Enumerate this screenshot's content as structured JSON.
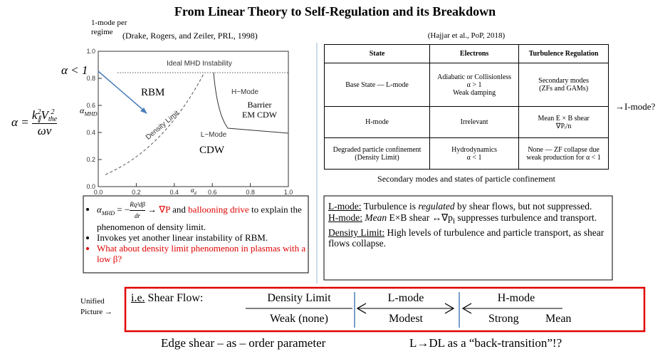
{
  "title": "From Linear Theory to Self-Regulation and its Breakdown",
  "left": {
    "regime_note": [
      "1-mode per",
      "regime"
    ],
    "citation": "(Drake, Rogers, and Zeiler, PRL, 1998)",
    "alpha_condition": "α < 1",
    "alpha_def": {
      "lhs": "α =",
      "k": "k",
      "k_sub": "∥",
      "k_sup": "2",
      "v": "V",
      "v_sub": "the",
      "v_sup": "2",
      "denominator": "ων"
    },
    "plot": {
      "ylabel_main": "α",
      "ylabel_sub": "MHD",
      "xlabel_main": "α",
      "xlabel_sub": "d",
      "xlim": [
        0,
        1
      ],
      "ylim": [
        0,
        1
      ],
      "xticks": [
        {
          "value": 0,
          "label": "0.0"
        },
        {
          "value": 0.2,
          "label": "0.2"
        },
        {
          "value": 0.4,
          "label": "0.4"
        },
        {
          "value": 0.6,
          "label": "0.6"
        },
        {
          "value": 0.8,
          "label": "0.8"
        },
        {
          "value": 1,
          "label": "1.0"
        }
      ],
      "yticks": [
        {
          "value": 0,
          "label": "0.0"
        },
        {
          "value": 0.2,
          "label": "0.2"
        },
        {
          "value": 0.4,
          "label": "0.4"
        },
        {
          "value": 0.6,
          "label": "0.6"
        },
        {
          "value": 0.8,
          "label": "0.8"
        },
        {
          "value": 1,
          "label": "1.0"
        }
      ],
      "ideal": "Ideal MHD Instability",
      "hmode": "H−Mode",
      "density_limit": "Density Limit",
      "lmode": "L−Mode",
      "rbm": "RBM",
      "barrier": [
        "Barrier",
        "EM CDW"
      ],
      "cdw": "CDW"
    },
    "bullets": {
      "b1": {
        "alpha": "α",
        "alpha_sub": "MHD",
        "eq": " = −",
        "num": "Rq²dβ",
        "den": "dr",
        "arrow": " → ",
        "gradp": "∇P",
        "and": " and ",
        "drive": "ballooning drive",
        "rest": "to explain the phenomenon of density limit."
      },
      "b2": "Invokes yet another linear instability of RBM.",
      "b3": "What about density limit phenomenon in plasmas with a low β?"
    }
  },
  "right": {
    "citation": "(Hajjar et al., PoP, 2018)",
    "table": {
      "header": [
        "State",
        "Electrons",
        "Turbulence Regulation"
      ],
      "rows": [
        [
          [
            "Base State — L-mode"
          ],
          [
            "Adiabatic or Collisionless",
            "α > 1",
            "Weak damping"
          ],
          [
            "Secondary modes",
            "(ZFs and GAMs)"
          ]
        ],
        [
          [
            "H-mode"
          ],
          [
            "Irrelevant"
          ],
          [
            "Mean E × B shear",
            "∇Pᵢ/n"
          ]
        ],
        [
          [
            "Degraded particle confinement",
            "(Density Limit)"
          ],
          [
            "Hydrodynamics",
            "α < 1"
          ],
          [
            "None — ZF collapse due",
            "weak production for α < 1"
          ]
        ]
      ]
    },
    "caption": "Secondary modes and states of particle confinement",
    "imode": "→I-mode?",
    "box": {
      "l_head": "L-mode:",
      "l_1": " Turbulence is ",
      "l_it": "regulated",
      "l_2": " by shear flows, but not suppressed.",
      "h_head": "H-mode:",
      "h_it": "Mean",
      "h_1": " E×B shear ↔∇p",
      "h_sub": "i",
      "h_2": " suppresses turbulence and transport.",
      "d_head": "Density Limit:",
      "d_1": " High levels of turbulence and particle transport, as shear flows collapse."
    }
  },
  "bottom": {
    "unified": [
      "Unified",
      "Picture →"
    ],
    "ie": "i.e.",
    "shear_flow": " Shear Flow:",
    "dl": "Density Limit",
    "dl_below": "Weak (none)",
    "lm": "L-mode",
    "lm_below": "Modest",
    "hm": "H-mode",
    "hm_below": "Strong",
    "mean": "Mean",
    "edge": "Edge shear – as – order parameter",
    "back": "L→DL as a “back-transition”!?"
  }
}
